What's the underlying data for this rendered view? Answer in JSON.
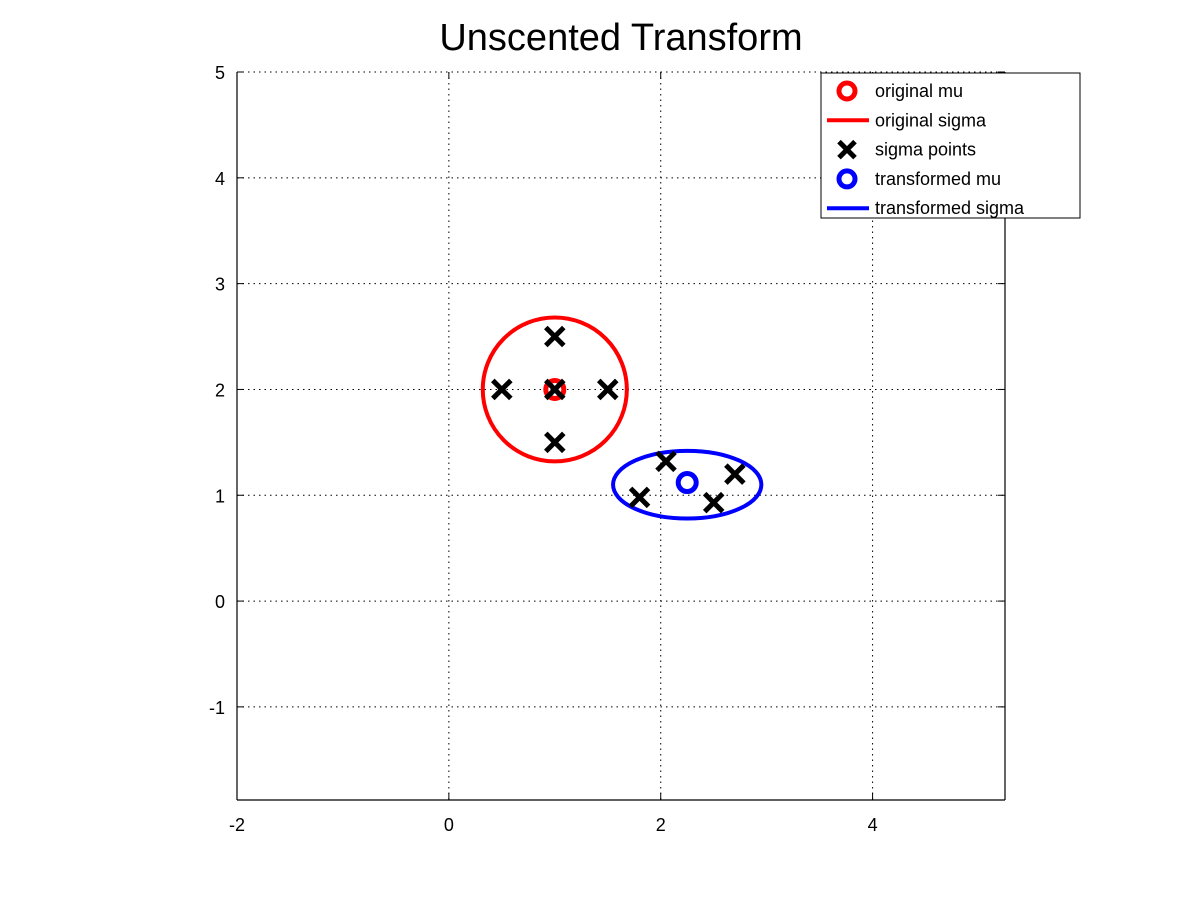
{
  "chart_data": {
    "type": "scatter",
    "title": "Unscented Transform",
    "xlabel": "",
    "ylabel": "",
    "xlim": [
      -2,
      5.25
    ],
    "ylim": [
      -1.88,
      5
    ],
    "xticks": [
      -2,
      0,
      2,
      4
    ],
    "yticks": [
      -1,
      0,
      1,
      2,
      3,
      4,
      5
    ],
    "xtick_labels": [
      "-2",
      "0",
      "2",
      "4"
    ],
    "ytick_labels": [
      "-1",
      "0",
      "1",
      "2",
      "3",
      "4",
      "5"
    ],
    "grid": true,
    "legend_position": "top-right",
    "legend": [
      {
        "label": "original mu",
        "marker": "circle",
        "color": "#ff0000"
      },
      {
        "label": "original sigma",
        "marker": "line",
        "color": "#ff0000"
      },
      {
        "label": "sigma points",
        "marker": "x",
        "color": "#000000"
      },
      {
        "label": "transformed mu",
        "marker": "circle",
        "color": "#0000ff"
      },
      {
        "label": "transformed sigma",
        "marker": "line",
        "color": "#0000ff"
      }
    ],
    "series": [
      {
        "name": "original mu",
        "kind": "point",
        "color": "#ff0000",
        "points": [
          [
            1.0,
            2.0
          ]
        ]
      },
      {
        "name": "original sigma",
        "kind": "ellipse",
        "color": "#ff0000",
        "center": [
          1.0,
          2.0
        ],
        "semi_axis_x": 0.68,
        "semi_axis_y": 0.68,
        "angle_deg": 0
      },
      {
        "name": "sigma points",
        "kind": "x",
        "color": "#000000",
        "points": [
          [
            1.0,
            2.0
          ],
          [
            1.0,
            2.5
          ],
          [
            1.5,
            2.0
          ],
          [
            1.0,
            1.5
          ],
          [
            0.5,
            2.0
          ],
          [
            2.05,
            1.32
          ],
          [
            2.7,
            1.2
          ],
          [
            2.5,
            0.93
          ],
          [
            1.8,
            0.98
          ]
        ]
      },
      {
        "name": "transformed mu",
        "kind": "point",
        "color": "#0000ff",
        "points": [
          [
            2.25,
            1.12
          ]
        ]
      },
      {
        "name": "transformed sigma",
        "kind": "ellipse",
        "color": "#0000ff",
        "center": [
          2.25,
          1.1
        ],
        "semi_axis_x": 0.7,
        "semi_axis_y": 0.32,
        "angle_deg": 0
      }
    ]
  }
}
